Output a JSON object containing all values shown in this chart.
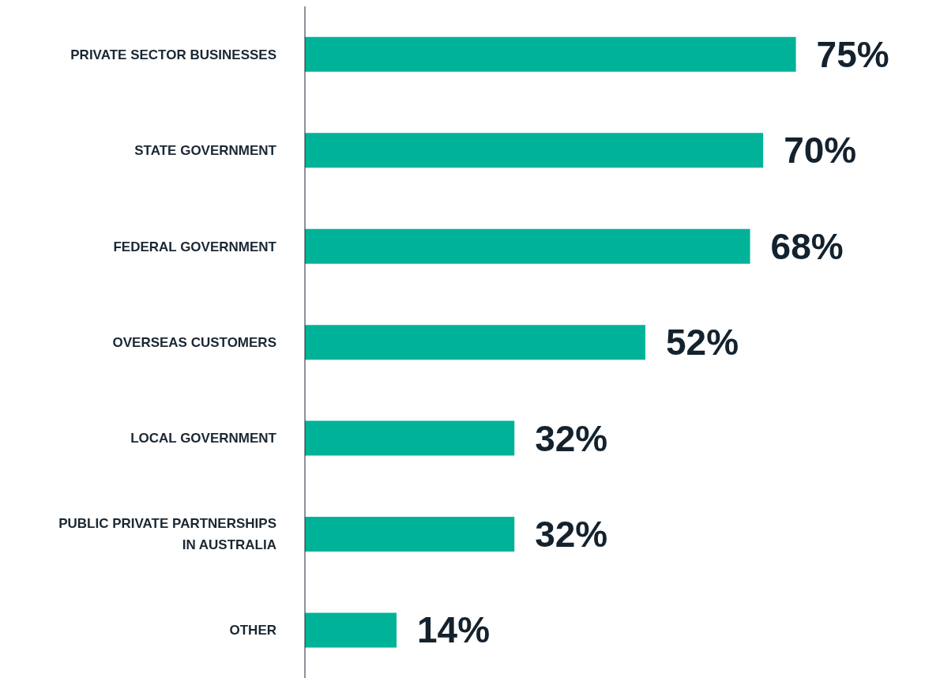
{
  "chart_data": {
    "type": "bar",
    "orientation": "horizontal",
    "categories": [
      "PRIVATE SECTOR BUSINESSES",
      "STATE GOVERNMENT",
      "FEDERAL GOVERNMENT",
      "OVERSEAS CUSTOMERS",
      "LOCAL GOVERNMENT",
      "PUBLIC PRIVATE PARTNERSHIPS IN AUSTRALIA",
      "OTHER"
    ],
    "values": [
      75,
      70,
      68,
      52,
      32,
      32,
      14
    ],
    "value_labels": [
      "75%",
      "70%",
      "68%",
      "52%",
      "32%",
      "32%",
      "14%"
    ],
    "color": "#00b398"
  }
}
